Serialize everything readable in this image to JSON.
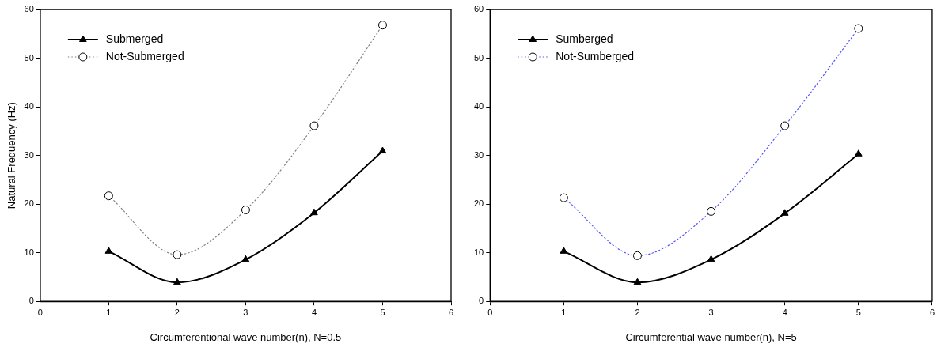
{
  "chart_data": [
    {
      "type": "line",
      "xlabel": "Circumferentional wave number(n), N=0.5",
      "ylabel": "Natural Frequency (Hz)",
      "x": [
        1,
        2,
        3,
        4,
        5
      ],
      "xlim": [
        0,
        6
      ],
      "xticks": [
        0,
        1,
        2,
        3,
        4,
        5,
        6
      ],
      "ylim": [
        0,
        60
      ],
      "yticks": [
        0,
        10,
        20,
        30,
        40,
        50,
        60
      ],
      "grid": false,
      "legend": "top left",
      "series": [
        {
          "name": "Submerged",
          "color": "#000000",
          "marker": "triangle",
          "line_style": "solid",
          "values": [
            10.3,
            3.9,
            8.6,
            18.2,
            30.9
          ]
        },
        {
          "name": "Not-Submerged",
          "color": "#808080",
          "marker": "circle",
          "line_style": "dotted",
          "values": [
            21.7,
            9.6,
            18.8,
            36.1,
            56.8
          ]
        }
      ]
    },
    {
      "type": "line",
      "xlabel": "Circumferential wave number(n), N=5",
      "x": [
        1,
        2,
        3,
        4,
        5
      ],
      "xlim": [
        0,
        6
      ],
      "xticks": [
        0,
        1,
        2,
        3,
        4,
        5,
        6
      ],
      "ylim": [
        0,
        60
      ],
      "yticks": [
        0,
        10,
        20,
        30,
        40,
        50,
        60
      ],
      "grid": false,
      "legend": "top left",
      "series": [
        {
          "name": "Sumberged",
          "color": "#000000",
          "marker": "triangle",
          "line_style": "solid",
          "values": [
            10.3,
            3.9,
            8.6,
            18.1,
            30.3
          ]
        },
        {
          "name": "Not-Sumberged",
          "color": "#5555ff",
          "marker": "circle",
          "line_style": "dotted",
          "values": [
            21.3,
            9.4,
            18.5,
            36.1,
            56.1
          ]
        }
      ]
    }
  ]
}
